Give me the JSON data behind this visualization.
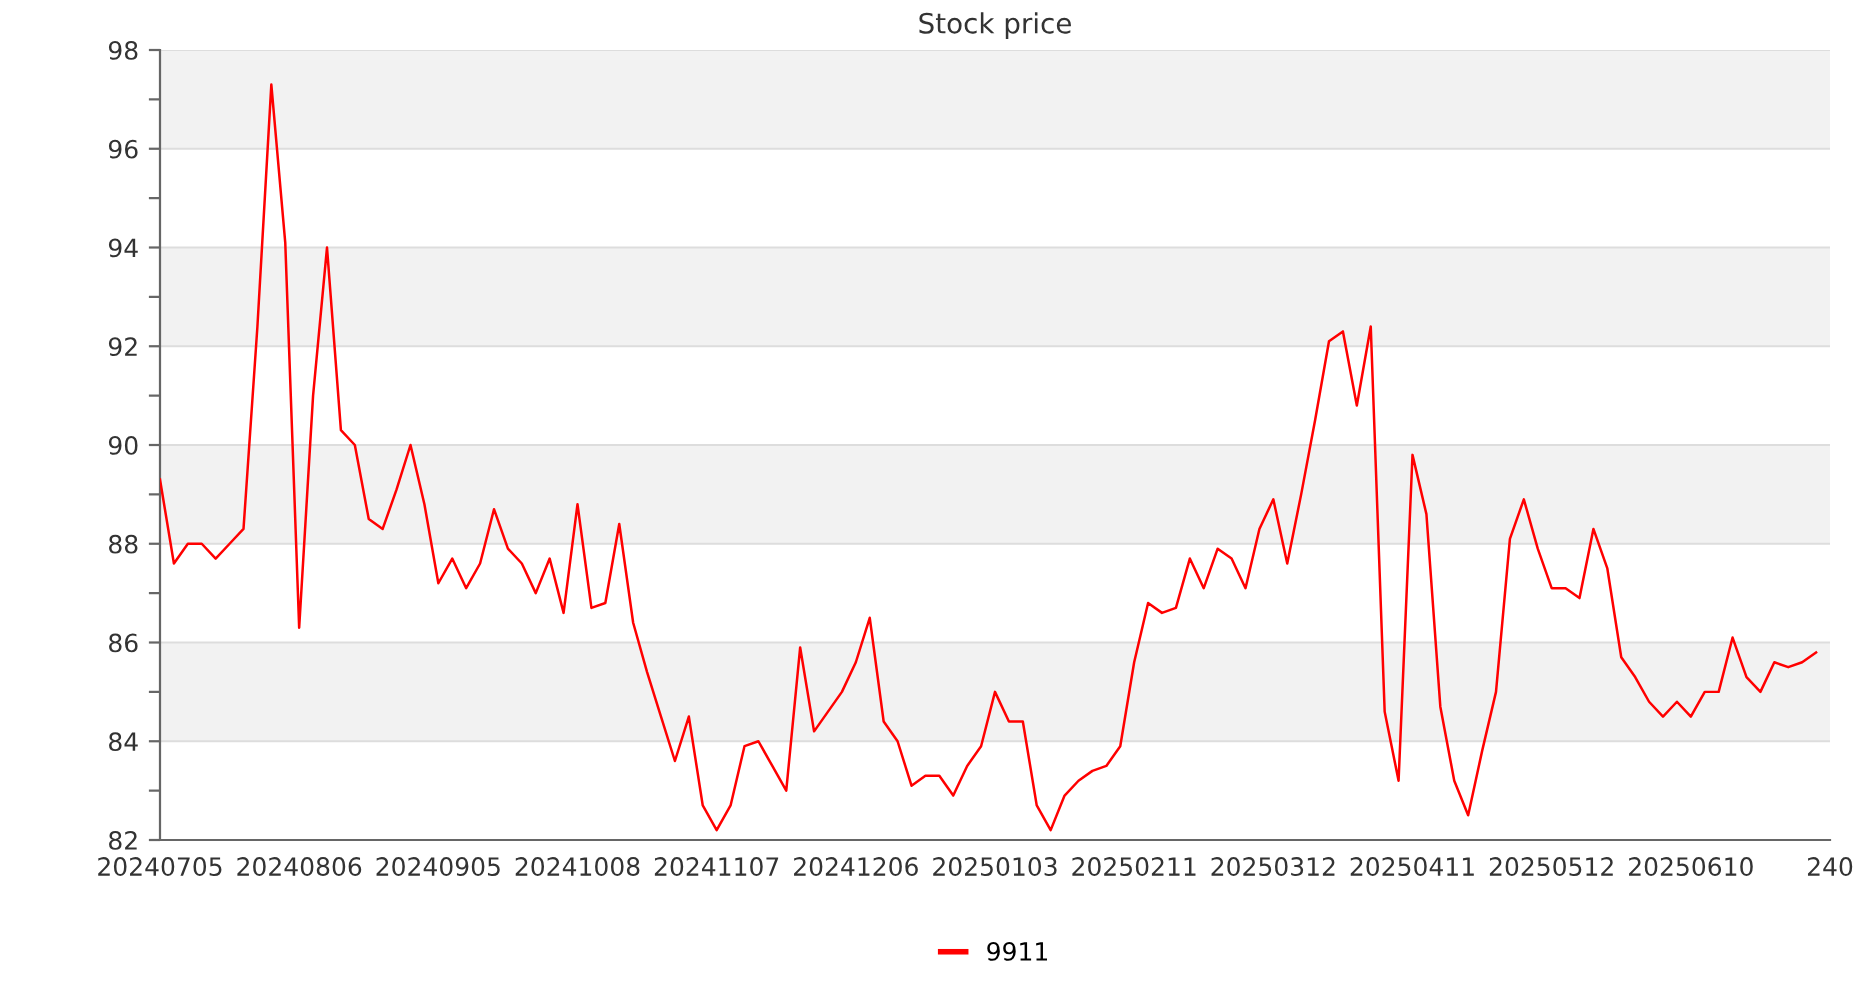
{
  "chart_data": {
    "type": "line",
    "title": "Stock price",
    "categories": [
      "20240705",
      null,
      null,
      null,
      null,
      null,
      null,
      null,
      null,
      null,
      "20240806",
      null,
      null,
      null,
      null,
      null,
      null,
      null,
      null,
      null,
      "20240905",
      null,
      null,
      null,
      null,
      null,
      null,
      null,
      null,
      null,
      "20241008",
      null,
      null,
      null,
      null,
      null,
      null,
      null,
      null,
      null,
      "20241107",
      null,
      null,
      null,
      null,
      null,
      null,
      null,
      null,
      null,
      "20241206",
      null,
      null,
      null,
      null,
      null,
      null,
      null,
      null,
      null,
      "20250103",
      null,
      null,
      null,
      null,
      null,
      null,
      null,
      null,
      null,
      "20250211",
      null,
      null,
      null,
      null,
      null,
      null,
      null,
      null,
      null,
      "20250312",
      null,
      null,
      null,
      null,
      null,
      null,
      null,
      null,
      null,
      "20250411",
      null,
      null,
      null,
      null,
      null,
      null,
      null,
      null,
      null,
      "20250512",
      null,
      null,
      null,
      null,
      null,
      null,
      null,
      null,
      null,
      "20250610",
      null,
      null,
      null,
      null,
      null,
      null,
      null,
      null,
      null,
      "240"
    ],
    "series": [
      {
        "name": "9911",
        "color": "#ff0000",
        "values": [
          89.3,
          87.6,
          88.0,
          88.0,
          87.7,
          88.0,
          88.3,
          92.4,
          97.3,
          94.1,
          86.3,
          91.0,
          94.0,
          90.3,
          90.0,
          88.5,
          88.3,
          89.1,
          90.0,
          88.8,
          87.2,
          87.7,
          87.1,
          87.6,
          88.7,
          87.9,
          87.6,
          87.0,
          87.7,
          86.6,
          88.8,
          86.7,
          86.8,
          88.4,
          86.4,
          85.4,
          84.5,
          83.6,
          84.5,
          82.7,
          82.2,
          82.7,
          83.9,
          84.0,
          83.5,
          83.0,
          85.9,
          84.2,
          84.6,
          85.0,
          85.6,
          86.5,
          84.4,
          84.0,
          83.1,
          83.3,
          83.3,
          82.9,
          83.5,
          83.9,
          85.0,
          84.4,
          84.4,
          82.7,
          82.2,
          82.9,
          83.2,
          83.4,
          83.5,
          83.9,
          85.6,
          86.8,
          86.6,
          86.7,
          87.7,
          87.1,
          87.9,
          87.7,
          87.1,
          88.3,
          88.9,
          87.6,
          89.0,
          90.5,
          92.1,
          92.3,
          90.8,
          92.4,
          84.6,
          83.2,
          89.8,
          88.6,
          84.7,
          83.2,
          82.5,
          83.8,
          85.0,
          88.1,
          88.9,
          87.9,
          87.1,
          87.1,
          86.9,
          88.3,
          87.5,
          85.7,
          85.3,
          84.8,
          84.5,
          84.8,
          84.5,
          85.0,
          85.0,
          86.1,
          85.3,
          85.0,
          85.6,
          85.5,
          85.6,
          85.8,
          null
        ]
      }
    ],
    "ylim": [
      82,
      98
    ],
    "yticks": [
      82,
      {
        "value": 83,
        "label": null
      },
      84,
      {
        "value": 85,
        "label": null
      },
      86,
      {
        "value": 87,
        "label": null
      },
      88,
      {
        "value": 89,
        "label": null
      },
      90,
      {
        "value": 91,
        "label": null
      },
      92,
      {
        "value": 93,
        "label": null
      },
      94,
      {
        "value": 95,
        "label": null
      },
      96,
      {
        "value": 97,
        "label": null
      },
      98
    ],
    "bands": [
      {
        "axis": "y",
        "from": 84,
        "to": 86,
        "color": "#f2f2f2"
      },
      {
        "axis": "y",
        "from": 88,
        "to": 90,
        "color": "#f2f2f2"
      },
      {
        "axis": "y",
        "from": 92,
        "to": 94,
        "color": "#f2f2f2"
      },
      {
        "axis": "y",
        "from": 96,
        "to": 98,
        "color": "#f2f2f2"
      }
    ],
    "grid": "y",
    "legend": "bottom",
    "marker": "none",
    "line_style": "solid"
  }
}
